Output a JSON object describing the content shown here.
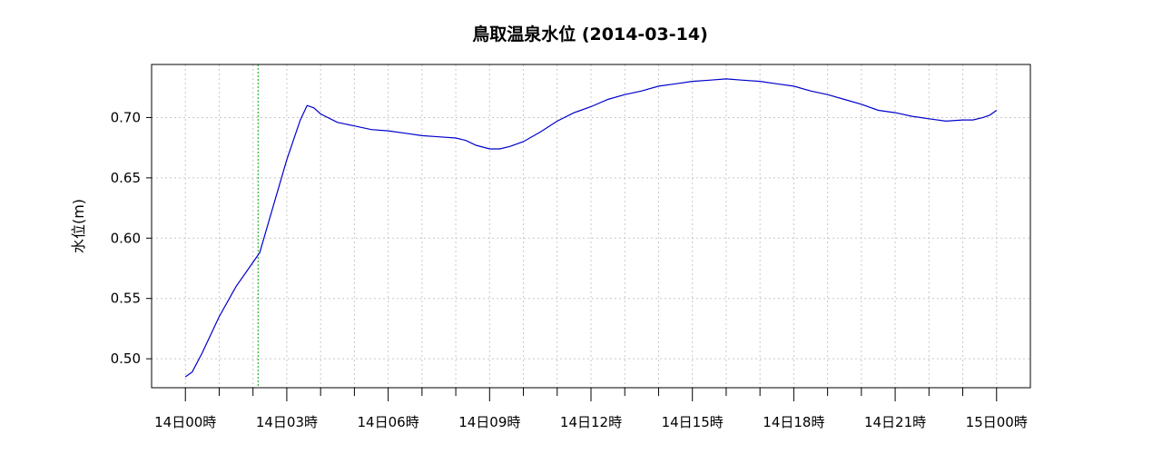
{
  "chart_data": {
    "type": "line",
    "title": "鳥取温泉水位 (2014-03-14)",
    "ylabel": "水位(m)",
    "xlabel": "",
    "xlim": [
      -1,
      25
    ],
    "ylim": [
      0.476,
      0.744
    ],
    "grid": true,
    "y_ticks": [
      0.5,
      0.55,
      0.6,
      0.65,
      0.7
    ],
    "y_tick_labels": [
      "0.50",
      "0.55",
      "0.60",
      "0.65",
      "0.70"
    ],
    "x_major_ticks": [
      0,
      3,
      6,
      9,
      12,
      15,
      18,
      21,
      24
    ],
    "x_tick_labels": [
      "14日00時",
      "14日03時",
      "14日06時",
      "14日09時",
      "14日12時",
      "14日15時",
      "14日18時",
      "14日21時",
      "15日00時"
    ],
    "x_minor_ticks": [
      1,
      2,
      4,
      5,
      7,
      8,
      10,
      11,
      13,
      14,
      16,
      17,
      19,
      20,
      22,
      23
    ],
    "marker_x": 2.15,
    "colors": {
      "series": "#0000cc",
      "marker": "#00aa00",
      "grid": "#c8c8c8"
    },
    "series": [
      {
        "x": [
          0,
          0.2,
          0.5,
          1.0,
          1.5,
          2.0,
          2.2,
          2.5,
          3.0,
          3.4,
          3.6,
          3.8,
          4.0,
          4.5,
          5.0,
          5.5,
          6.0,
          6.5,
          7.0,
          7.5,
          8.0,
          8.3,
          8.6,
          9.0,
          9.3,
          9.6,
          10.0,
          10.5,
          11.0,
          11.5,
          12.0,
          12.5,
          13.0,
          13.5,
          14.0,
          14.5,
          15.0,
          15.5,
          16.0,
          16.5,
          17.0,
          17.5,
          18.0,
          18.5,
          19.0,
          19.5,
          20.0,
          20.5,
          21.0,
          21.5,
          22.0,
          22.5,
          23.0,
          23.3,
          23.6,
          23.8,
          24.0
        ],
        "y": [
          0.485,
          0.489,
          0.505,
          0.535,
          0.56,
          0.58,
          0.588,
          0.617,
          0.665,
          0.698,
          0.71,
          0.708,
          0.703,
          0.696,
          0.693,
          0.69,
          0.689,
          0.687,
          0.685,
          0.684,
          0.683,
          0.681,
          0.677,
          0.674,
          0.674,
          0.676,
          0.68,
          0.688,
          0.697,
          0.704,
          0.709,
          0.715,
          0.719,
          0.722,
          0.726,
          0.728,
          0.73,
          0.731,
          0.732,
          0.731,
          0.73,
          0.728,
          0.726,
          0.722,
          0.719,
          0.715,
          0.711,
          0.706,
          0.704,
          0.701,
          0.699,
          0.697,
          0.698,
          0.698,
          0.7,
          0.702,
          0.706
        ]
      }
    ]
  }
}
